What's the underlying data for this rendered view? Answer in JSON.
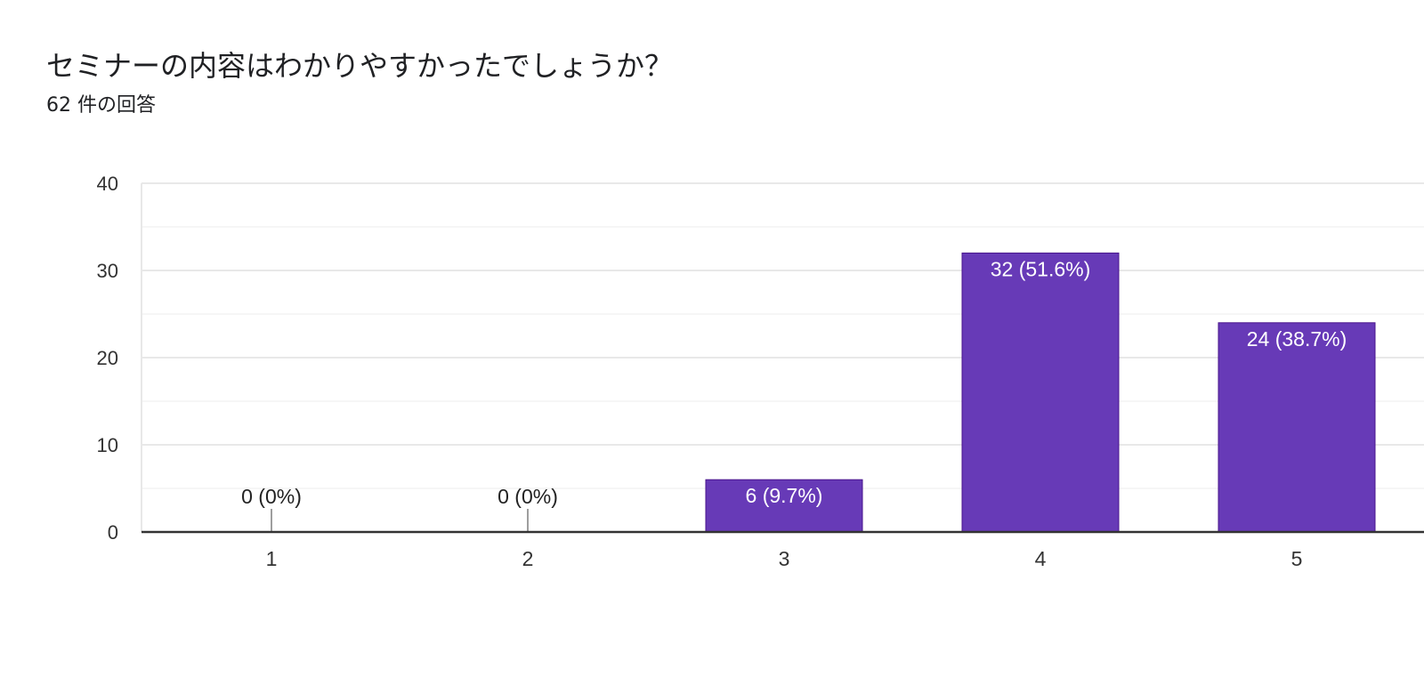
{
  "question": {
    "title": "セミナーの内容はわかりやすかったでしょうか？",
    "response_count": "62 件の回答"
  },
  "colors": {
    "bar": "#673ab7",
    "bar_border": "#4a148c",
    "grid": "#e8e8e8",
    "minor_grid": "#f3f3f3",
    "axis": "#333333",
    "tick_text": "#333333",
    "label_inside": "#ffffff",
    "label_outside": "#222222",
    "zero_stub": "#9e9e9e"
  },
  "chart_data": {
    "type": "bar",
    "categories": [
      "1",
      "2",
      "3",
      "4",
      "5"
    ],
    "values": [
      0,
      0,
      6,
      32,
      24
    ],
    "data_labels": [
      "0 (0%)",
      "0 (0%)",
      "6 (9.7%)",
      "32 (51.6%)",
      "24 (38.7%)"
    ],
    "ylim": [
      0,
      40
    ],
    "yticks": [
      0,
      10,
      20,
      30,
      40
    ],
    "grid": true,
    "legend": "none",
    "title": "セミナーの内容はわかりやすかったでしょうか？",
    "subtitle": "62 件の回答"
  }
}
